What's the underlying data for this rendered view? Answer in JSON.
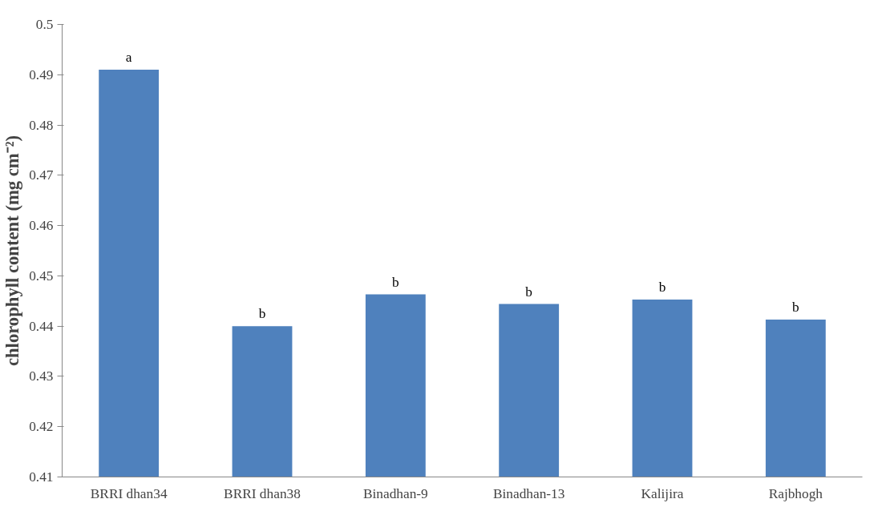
{
  "chart_data": {
    "type": "bar",
    "ylabel": "chlorophyll content (mg cm⁻²)",
    "categories": [
      "BRRI dhan34",
      "BRRI dhan38",
      "Binadhan-9",
      "Binadhan-13",
      "Kalijira",
      "Rajbhogh"
    ],
    "values": [
      0.491,
      0.44,
      0.4463,
      0.4444,
      0.4453,
      0.4413
    ],
    "color": "#4f81bd",
    "ylim": [
      0.41,
      0.5
    ],
    "yticks": [
      0.41,
      0.42,
      0.43,
      0.44,
      0.45,
      0.46,
      0.47,
      0.48,
      0.49,
      0.5
    ],
    "grid": false,
    "legend": false,
    "annotations": [
      {
        "text": "a",
        "x": "BRRI dhan34",
        "y": 0.491
      },
      {
        "text": "b",
        "x": "BRRI dhan38",
        "y": 0.44
      },
      {
        "text": "b",
        "x": "Binadhan-9",
        "y": 0.4463
      },
      {
        "text": "b",
        "x": "Binadhan-13",
        "y": 0.4444
      },
      {
        "text": "b",
        "x": "Kalijira",
        "y": 0.4453
      },
      {
        "text": "b",
        "x": "Rajbhogh",
        "y": 0.4413
      }
    ]
  }
}
